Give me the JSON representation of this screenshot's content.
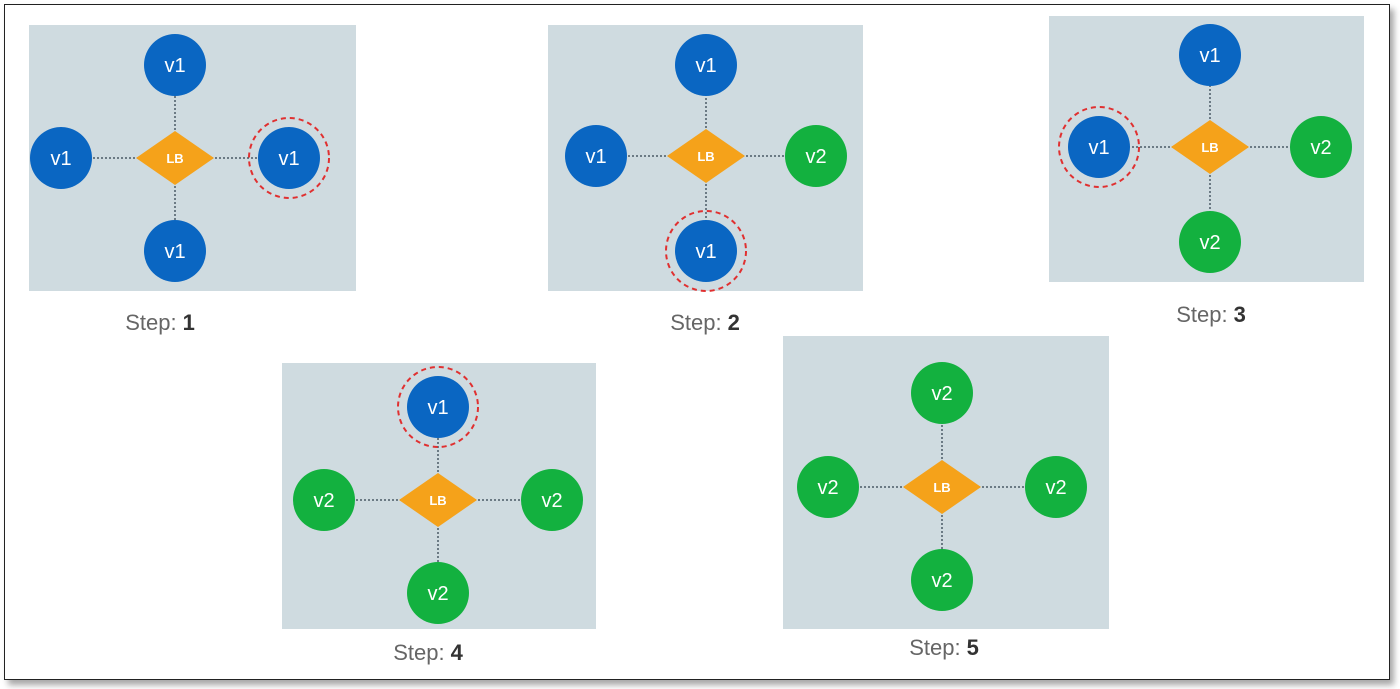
{
  "colors": {
    "v1": "#0a66c2",
    "v2": "#13b13f",
    "lb": "#f5a21a",
    "panel": "#cfdbe0",
    "highlight": "#e03030"
  },
  "lb_label": "LB",
  "step_word": "Step:",
  "steps": [
    {
      "number": "1",
      "nodes": {
        "top": "v1",
        "left": "v1",
        "right": "v1",
        "bottom": "v1"
      },
      "highlight": "right"
    },
    {
      "number": "2",
      "nodes": {
        "top": "v1",
        "left": "v1",
        "right": "v2",
        "bottom": "v1"
      },
      "highlight": "bottom"
    },
    {
      "number": "3",
      "nodes": {
        "top": "v1",
        "left": "v1",
        "right": "v2",
        "bottom": "v2"
      },
      "highlight": "left"
    },
    {
      "number": "4",
      "nodes": {
        "top": "v1",
        "left": "v2",
        "right": "v2",
        "bottom": "v2"
      },
      "highlight": "top"
    },
    {
      "number": "5",
      "nodes": {
        "top": "v2",
        "left": "v2",
        "right": "v2",
        "bottom": "v2"
      },
      "highlight": ""
    }
  ]
}
